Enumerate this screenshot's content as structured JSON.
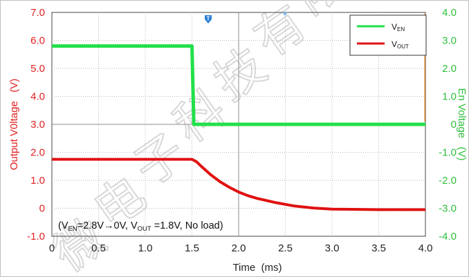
{
  "chart_data": {
    "type": "line",
    "title": "",
    "xlabel": "Time  (ms)",
    "ylabel_left": "Output V0ltage   (V)",
    "ylabel_right": "En Voltage   (V)",
    "xlim": [
      0,
      4.0
    ],
    "ylim_left": [
      -1.0,
      7.0
    ],
    "ylim_right": [
      -4.0,
      4.0
    ],
    "x_ticks": [
      "0",
      "0.5",
      "1.0",
      "1.5",
      "2.0",
      "2.5",
      "3.0",
      "3.5",
      "4.0"
    ],
    "y_left_ticks": [
      "7.0",
      "6.0",
      "5.0",
      "4.0",
      "3.0",
      "2.0",
      "1.0",
      "0",
      "-1.0"
    ],
    "y_right_ticks": [
      "4.0",
      "3.0",
      "2.0",
      "1.0",
      "0",
      "-1.0",
      "-2.0",
      "-3.0",
      "-4.0"
    ],
    "grid": true,
    "legend_position": "top-right",
    "trigger_marker": "T",
    "annotation": "(V<sub>EN</sub>=2.8V→0V, V<sub>OUT</sub> =1.8V, No load)",
    "annotation_parts": {
      "p1": "(V",
      "s1": "EN",
      "p2": "=2.8V→0V, V",
      "s2": "OUT",
      "p3": " =1.8V, No load)"
    },
    "watermark": "微电子科技有限",
    "series": [
      {
        "name": "V_EN",
        "legend_main": "V",
        "legend_sub": "EN",
        "color": "#22e04a",
        "axis": "right",
        "x": [
          0,
          1.5,
          1.52,
          4.0
        ],
        "y": [
          2.8,
          2.8,
          0.0,
          0.0
        ]
      },
      {
        "name": "V_OUT",
        "legend_main": "V",
        "legend_sub": "OUT",
        "color": "#e01010",
        "axis": "left",
        "x": [
          0,
          1.5,
          1.55,
          1.6,
          1.7,
          1.8,
          1.9,
          2.0,
          2.1,
          2.2,
          2.4,
          2.6,
          2.8,
          3.0,
          3.5,
          4.0
        ],
        "y": [
          1.75,
          1.75,
          1.66,
          1.5,
          1.2,
          0.95,
          0.75,
          0.58,
          0.45,
          0.35,
          0.2,
          0.08,
          0.01,
          -0.03,
          -0.05,
          -0.05
        ]
      }
    ]
  }
}
